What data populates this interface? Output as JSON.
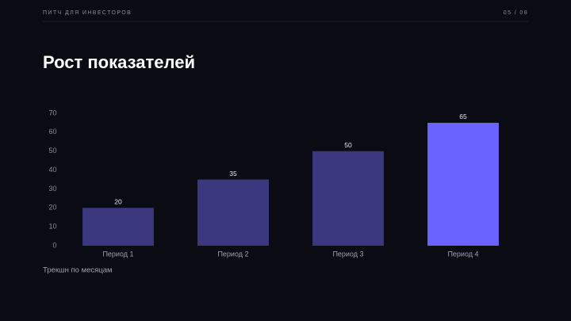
{
  "header": {
    "label": "ПИТЧ ДЛЯ ИНВЕСТОРОВ",
    "page": "05 / 08"
  },
  "chart_data": {
    "type": "bar",
    "title": "Рост показателей",
    "categories": [
      "Период 1",
      "Период 2",
      "Период 3",
      "Период 4"
    ],
    "values": [
      20,
      35,
      50,
      65
    ],
    "colors": [
      "#3b3880",
      "#3b3880",
      "#3b3880",
      "#6b63ff"
    ],
    "ylim": [
      0,
      70
    ],
    "yticks": [
      0,
      10,
      20,
      30,
      40,
      50,
      60,
      70
    ],
    "grid": false,
    "caption": "Трекшн по месяцам"
  }
}
